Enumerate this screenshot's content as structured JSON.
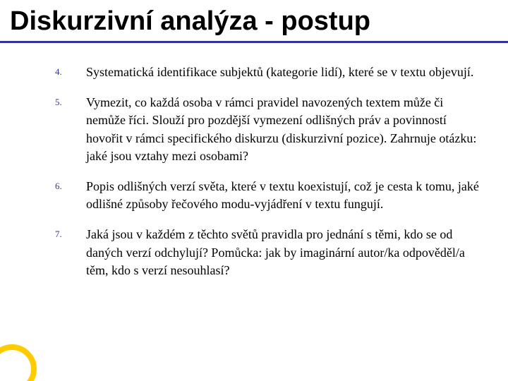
{
  "slide": {
    "title": "Diskurzivní analýza - postup",
    "accent_color": "#ffcc00",
    "underline_color": "#333399",
    "number_color": "#333399",
    "title_color": "#000000",
    "text_color": "#000000",
    "title_fontsize": 38,
    "body_fontsize": 18,
    "number_fontsize": 13,
    "items": [
      {
        "num": "4.",
        "text": "Systematická identifikace subjektů (kategorie lidí), které se v textu objevují."
      },
      {
        "num": "5.",
        "text": "Vymezit, co každá osoba v rámci pravidel navozených textem může či nemůže říci. Slouží pro pozdější vymezení odlišných práv a povinností hovořit v rámci specifického diskurzu (diskurzivní pozice). Zahrnuje otázku: jaké jsou vztahy mezi osobami?"
      },
      {
        "num": "6.",
        "text": "Popis odlišných verzí světa, které v textu koexistují, což je cesta k tomu, jaké odlišné způsoby řečového modu-vyjádření v textu fungují."
      },
      {
        "num": "7.",
        "text": "Jaká jsou v každém z těchto světů pravidla pro jednání s těmi, kdo se od daných verzí odchylují? Pomůcka: jak by imaginární autor/ka odpověděl/a těm, kdo s verzí nesouhlasí?"
      }
    ]
  }
}
